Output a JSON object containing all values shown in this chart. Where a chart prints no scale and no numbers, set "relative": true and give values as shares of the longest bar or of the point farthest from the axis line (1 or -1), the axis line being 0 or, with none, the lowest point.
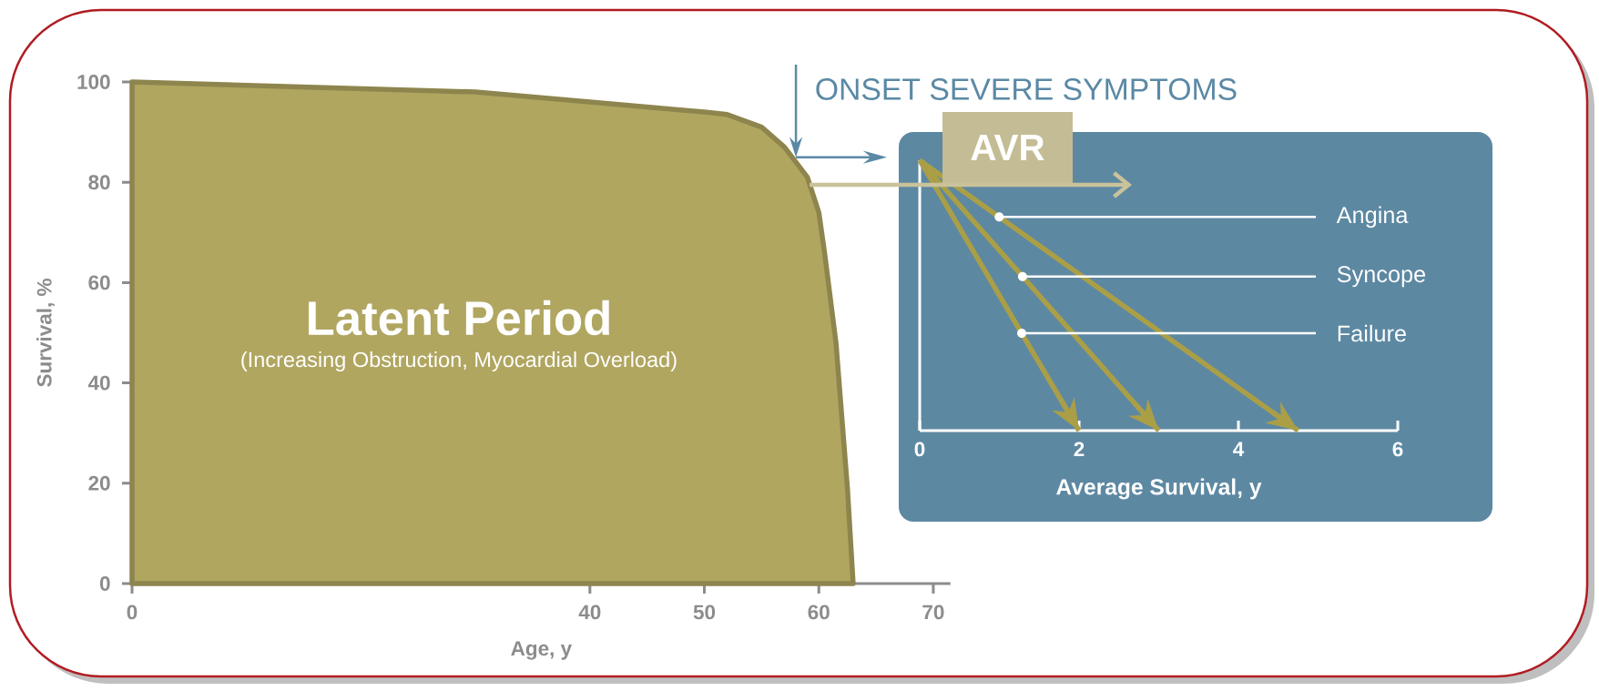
{
  "chart_data": [
    {
      "type": "area",
      "xlabel": "Age, y",
      "ylabel": "Survival, %",
      "x": [
        0,
        30,
        40,
        50,
        52,
        55,
        57,
        59,
        60,
        60.5,
        61.5,
        62.5,
        63
      ],
      "values": [
        100,
        98,
        96,
        94,
        93.5,
        91,
        87,
        81,
        74,
        66,
        48,
        19,
        0
      ],
      "color": "#b0a660",
      "xlim": [
        0,
        71.5
      ],
      "xticks": [
        0,
        40,
        50,
        60,
        70
      ],
      "ylim": [
        0,
        100
      ],
      "yticks": [
        0,
        20,
        40,
        60,
        80,
        100
      ],
      "annotations": [
        {
          "text": "ONSET SEVERE SYMPTOMS",
          "x": 58,
          "y": 85
        },
        "Latent Period",
        "(Increasing Obstruction, Myocardial Overload)",
        "AVR"
      ]
    },
    {
      "type": "line",
      "relative": true,
      "xlabel": "Average Survival, y",
      "xlim": [
        0,
        6
      ],
      "xticks": [
        0,
        2,
        4,
        6
      ],
      "series": [
        {
          "name": "Angina",
          "color": "#aa9f47",
          "x": [
            0,
            4.75
          ],
          "values": [
            1,
            0
          ]
        },
        {
          "name": "Syncope",
          "color": "#aa9f47",
          "x": [
            0,
            3
          ],
          "values": [
            1,
            0
          ]
        },
        {
          "name": "Failure",
          "color": "#aa9f47",
          "x": [
            0,
            2
          ],
          "values": [
            1,
            0
          ]
        }
      ]
    }
  ]
}
